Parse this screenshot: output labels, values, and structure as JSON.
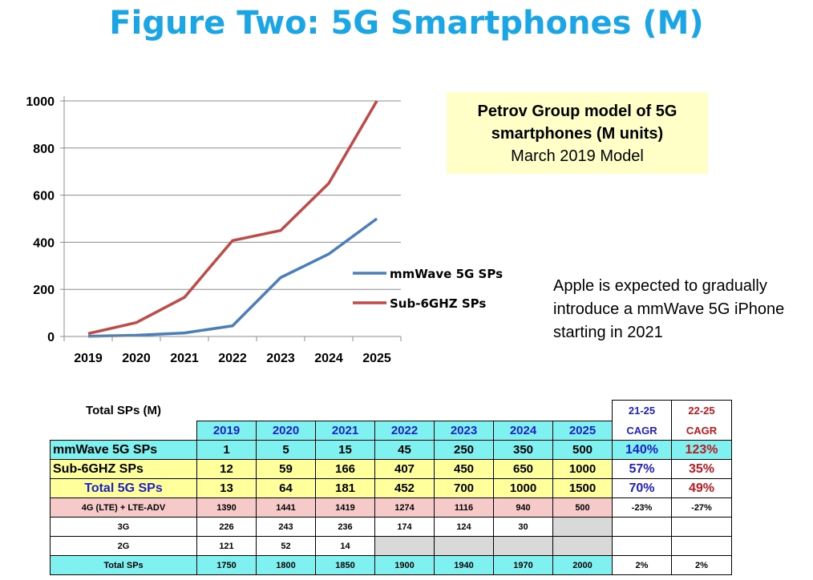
{
  "title": "Figure Two: 5G Smartphones (M)",
  "model_box": {
    "line1": "Petrov Group  model of 5G",
    "line2": "smartphones (M units)",
    "line3": "March 2019 Model"
  },
  "note": "Apple is expected to gradually introduce a mmWave 5G iPhone starting in 2021",
  "chart_data": {
    "type": "line",
    "x": [
      "2019",
      "2020",
      "2021",
      "2022",
      "2023",
      "2024",
      "2025"
    ],
    "series": [
      {
        "name": "mmWave 5G SPs",
        "color": "#4a7ebb",
        "values": [
          1,
          5,
          15,
          45,
          250,
          350,
          500
        ]
      },
      {
        "name": "Sub-6GHZ SPs",
        "color": "#be4b48",
        "values": [
          12,
          59,
          166,
          407,
          450,
          650,
          1000
        ]
      }
    ],
    "y_ticks": [
      0,
      200,
      400,
      600,
      800,
      1000
    ],
    "ylim": [
      0,
      1000
    ],
    "grid": "horizontal",
    "legend": "right"
  },
  "table": {
    "label": "Total SPs (M)",
    "years": [
      "2019",
      "2020",
      "2021",
      "2022",
      "2023",
      "2024",
      "2025"
    ],
    "cagr1_top": "21-25",
    "cagr1_bottom": "CAGR",
    "cagr2_top": "22-25",
    "cagr2_bottom": "CAGR",
    "rows": [
      {
        "label": "mmWave 5G SPs",
        "values": [
          "1",
          "5",
          "15",
          "45",
          "250",
          "350",
          "500"
        ],
        "cagr1": "140%",
        "cagr2": "123%"
      },
      {
        "label": "Sub-6GHZ SPs",
        "values": [
          "12",
          "59",
          "166",
          "407",
          "450",
          "650",
          "1000"
        ],
        "cagr1": "57%",
        "cagr2": "35%"
      },
      {
        "label": "Total 5G SPs",
        "values": [
          "13",
          "64",
          "181",
          "452",
          "700",
          "1000",
          "1500"
        ],
        "cagr1": "70%",
        "cagr2": "49%"
      },
      {
        "label": "4G (LTE) + LTE-ADV",
        "values": [
          "1390",
          "1441",
          "1419",
          "1274",
          "1116",
          "940",
          "500"
        ],
        "cagr1": "-23%",
        "cagr2": "-27%"
      },
      {
        "label": "3G",
        "values": [
          "226",
          "243",
          "236",
          "174",
          "124",
          "30",
          ""
        ],
        "cagr1": "",
        "cagr2": ""
      },
      {
        "label": "2G",
        "values": [
          "121",
          "52",
          "14",
          "",
          "",
          "",
          ""
        ],
        "cagr1": "",
        "cagr2": ""
      },
      {
        "label": "Total SPs",
        "values": [
          "1750",
          "1800",
          "1850",
          "1900",
          "1940",
          "1970",
          "2000"
        ],
        "cagr1": "2%",
        "cagr2": "2%"
      }
    ]
  }
}
